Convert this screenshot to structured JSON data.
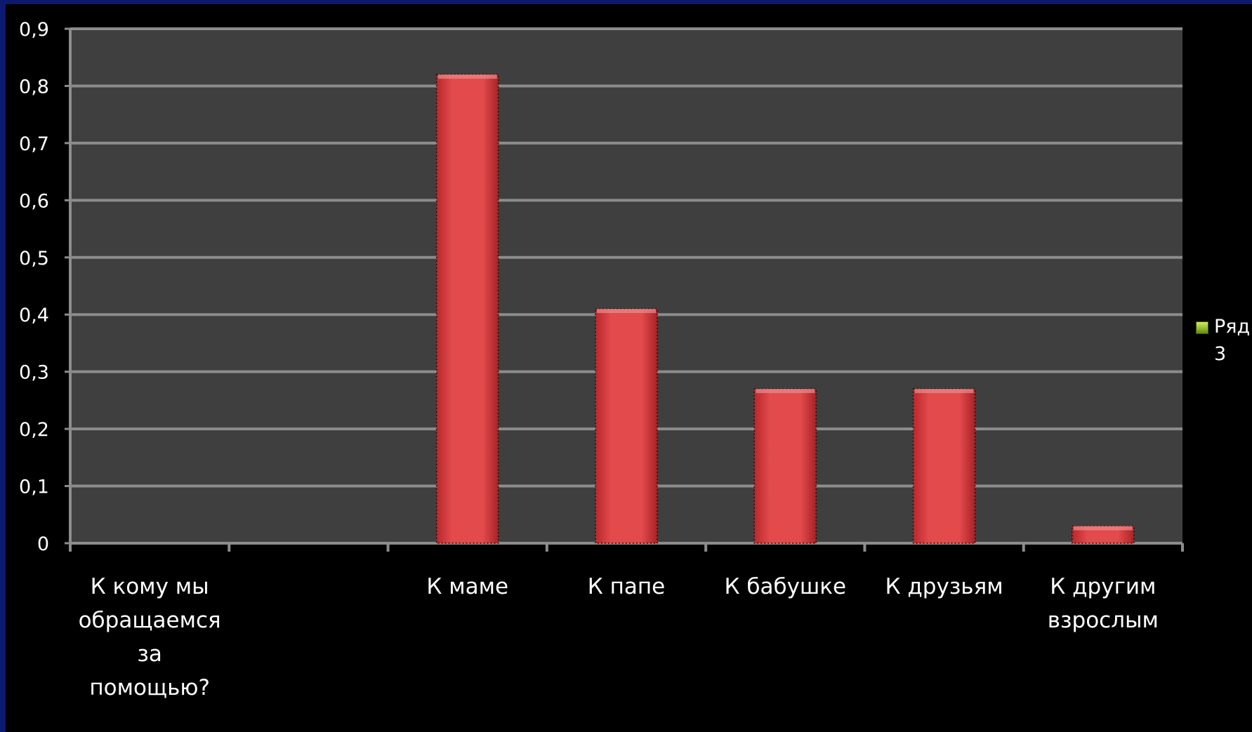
{
  "chart_data": {
    "type": "bar",
    "categories": [
      "К кому мы\nобращаемся\nза\nпомощью?",
      "",
      "К маме",
      "К папе",
      "К бабушке",
      "К друзьям",
      "К другим\nвзрослым"
    ],
    "series": [
      {
        "name": "Ряд 3",
        "values": [
          null,
          null,
          0.82,
          0.41,
          0.27,
          0.27,
          0.03
        ]
      }
    ],
    "ylim": [
      0,
      0.9
    ],
    "yticks": [
      "0",
      "0,1",
      "0,2",
      "0,3",
      "0,4",
      "0,5",
      "0,6",
      "0,7",
      "0,8",
      "0,9"
    ],
    "grid": true,
    "legend_position": "right",
    "colors": {
      "plot_background": "#3f3f3f",
      "page_background": "#000000",
      "bar": "#e24a4c",
      "gridline": "#8c8c8c",
      "legend_marker": "#9bc23a"
    }
  },
  "legend": {
    "label": "Ряд 3"
  }
}
